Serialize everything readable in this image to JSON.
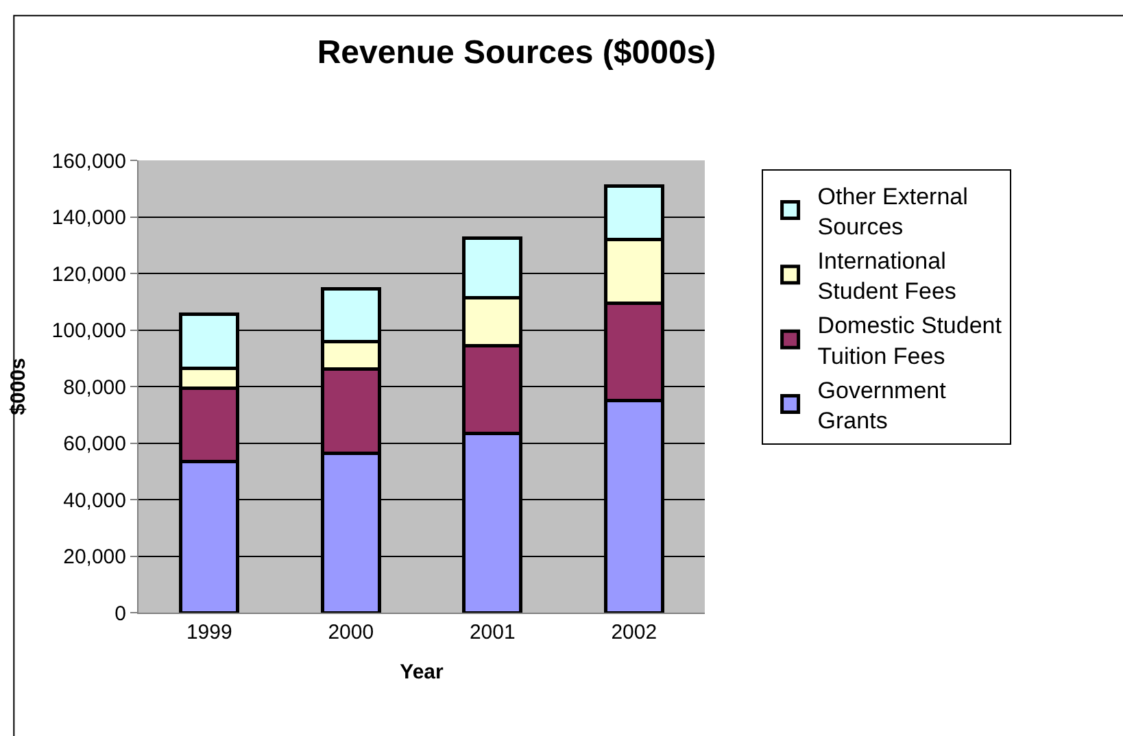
{
  "chart_data": {
    "type": "bar",
    "stacked": true,
    "title": "Revenue Sources ($000s)",
    "xlabel": "Year",
    "ylabel": "$000s",
    "categories": [
      "1999",
      "2000",
      "2001",
      "2002"
    ],
    "series": [
      {
        "name": "Government Grants",
        "color": "#9999ff",
        "values": [
          53500,
          56400,
          63300,
          75100
        ]
      },
      {
        "name": "Domestic Student Tuition Fees",
        "color": "#993366",
        "values": [
          26000,
          29800,
          31100,
          34300
        ]
      },
      {
        "name": "International Student Fees",
        "color": "#ffffcc",
        "values": [
          7000,
          9600,
          16900,
          22500
        ]
      },
      {
        "name": "Other External Sources",
        "color": "#ccffff",
        "values": [
          19000,
          18800,
          21300,
          19000
        ]
      }
    ],
    "ylim": [
      0,
      160000
    ],
    "yticks": [
      {
        "value": 0,
        "label": "0"
      },
      {
        "value": 20000,
        "label": "20,000"
      },
      {
        "value": 40000,
        "label": "40,000"
      },
      {
        "value": 60000,
        "label": "60,000"
      },
      {
        "value": 80000,
        "label": "80,000"
      },
      {
        "value": 100000,
        "label": "100,000"
      },
      {
        "value": 120000,
        "label": "120,000"
      },
      {
        "value": 140000,
        "label": "140,000"
      },
      {
        "value": 160000,
        "label": "160,000"
      }
    ],
    "grid": "y",
    "legend": "right"
  }
}
